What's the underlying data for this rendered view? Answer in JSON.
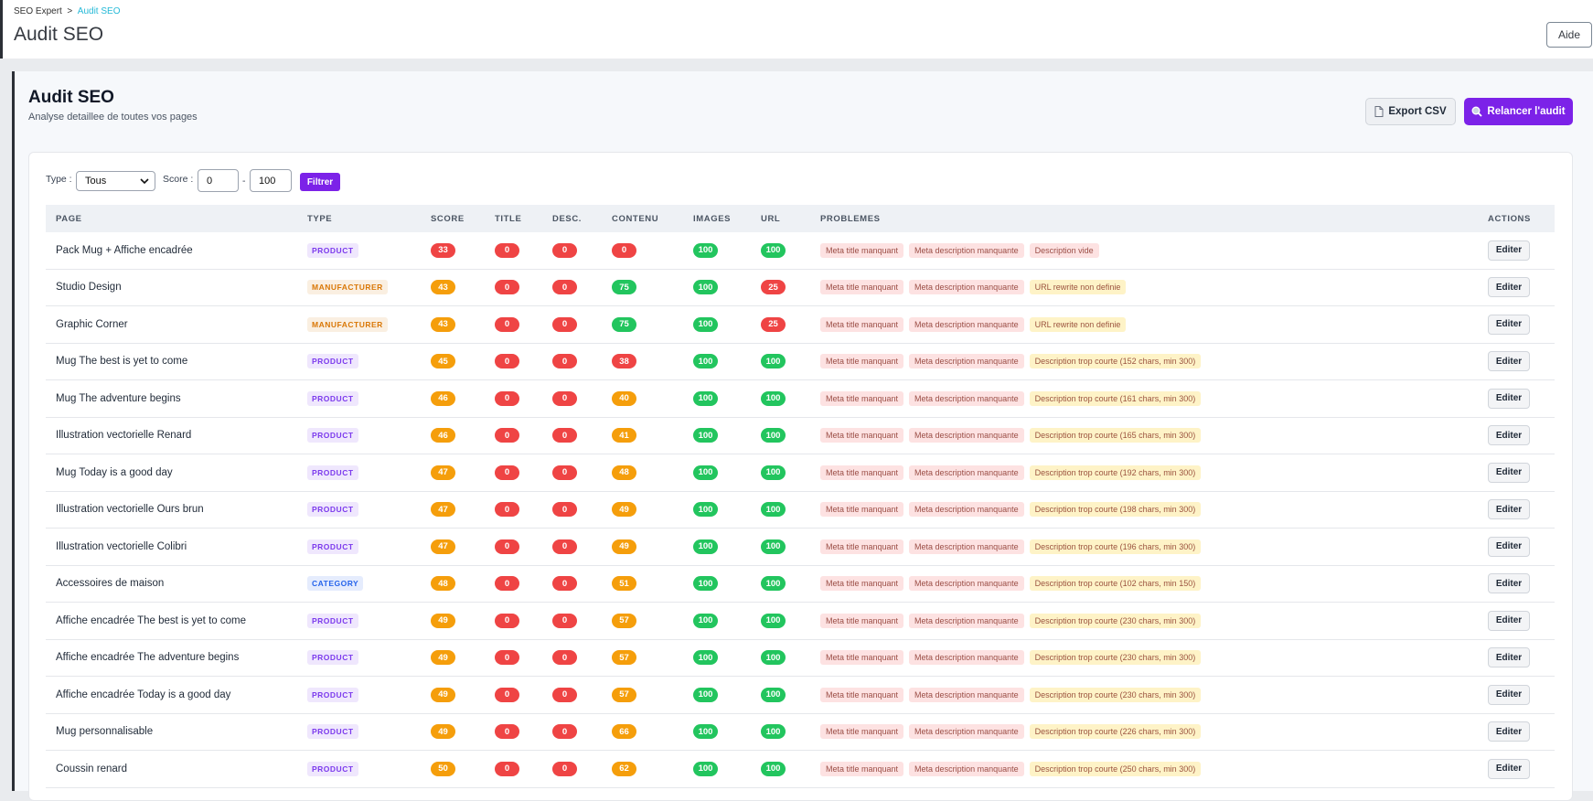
{
  "breadcrumb": {
    "root": "SEO Expert",
    "separator": ">",
    "current": "Audit SEO"
  },
  "header": {
    "title": "Audit SEO",
    "help_button": "Aide"
  },
  "panel": {
    "title": "Audit SEO",
    "subtitle": "Analyse detaillee de toutes vos pages",
    "export_button": "Export CSV",
    "rerun_button": "Relancer l'audit"
  },
  "filters": {
    "type_label": "Type :",
    "type_value": "Tous",
    "score_label": "Score :",
    "score_min": "0",
    "score_separator": "-",
    "score_max": "100",
    "button": "Filtrer"
  },
  "table": {
    "columns": [
      "PAGE",
      "TYPE",
      "SCORE",
      "TITLE",
      "DESC.",
      "CONTENU",
      "IMAGES",
      "URL",
      "PROBLEMES",
      "ACTIONS"
    ],
    "type_colors": {
      "PRODUCT": "#7c3aed",
      "MANUFACTURER": "#d97706",
      "CATEGORY": "#2563eb"
    },
    "rows": [
      {
        "page": "Pack Mug + Affiche encadrée",
        "type": "PRODUCT",
        "score": 33,
        "title": 0,
        "description": 0,
        "content": 0,
        "images": 100,
        "url": 100,
        "problems": [
          {
            "text": "Meta title manquant",
            "color": "#fde2e2"
          },
          {
            "text": "Meta description manquante",
            "color": "#fde2e2"
          },
          {
            "text": "Description vide",
            "color": "#fde2e2"
          }
        ],
        "action": "Editer"
      },
      {
        "page": "Studio Design",
        "type": "MANUFACTURER",
        "score": 43,
        "title": 0,
        "description": 0,
        "content": 75,
        "images": 100,
        "url": 25,
        "problems": [
          {
            "text": "Meta title manquant",
            "color": "#fde2e2"
          },
          {
            "text": "Meta description manquante",
            "color": "#fde2e2"
          },
          {
            "text": "URL rewrite non definie",
            "color": "#fef3c7"
          }
        ],
        "action": "Editer"
      },
      {
        "page": "Graphic Corner",
        "type": "MANUFACTURER",
        "score": 43,
        "title": 0,
        "description": 0,
        "content": 75,
        "images": 100,
        "url": 25,
        "problems": [
          {
            "text": "Meta title manquant",
            "color": "#fde2e2"
          },
          {
            "text": "Meta description manquante",
            "color": "#fde2e2"
          },
          {
            "text": "URL rewrite non definie",
            "color": "#fef3c7"
          }
        ],
        "action": "Editer"
      },
      {
        "page": "Mug The best is yet to come",
        "type": "PRODUCT",
        "score": 45,
        "title": 0,
        "description": 0,
        "content": 38,
        "images": 100,
        "url": 100,
        "problems": [
          {
            "text": "Meta title manquant",
            "color": "#fde2e2"
          },
          {
            "text": "Meta description manquante",
            "color": "#fde2e2"
          },
          {
            "text": "Description trop courte (152 chars, min 300)",
            "color": "#fef3c7"
          }
        ],
        "action": "Editer"
      },
      {
        "page": "Mug The adventure begins",
        "type": "PRODUCT",
        "score": 46,
        "title": 0,
        "description": 0,
        "content": 40,
        "images": 100,
        "url": 100,
        "problems": [
          {
            "text": "Meta title manquant",
            "color": "#fde2e2"
          },
          {
            "text": "Meta description manquante",
            "color": "#fde2e2"
          },
          {
            "text": "Description trop courte (161 chars, min 300)",
            "color": "#fef3c7"
          }
        ],
        "action": "Editer"
      },
      {
        "page": "Illustration vectorielle Renard",
        "type": "PRODUCT",
        "score": 46,
        "title": 0,
        "description": 0,
        "content": 41,
        "images": 100,
        "url": 100,
        "problems": [
          {
            "text": "Meta title manquant",
            "color": "#fde2e2"
          },
          {
            "text": "Meta description manquante",
            "color": "#fde2e2"
          },
          {
            "text": "Description trop courte (165 chars, min 300)",
            "color": "#fef3c7"
          }
        ],
        "action": "Editer"
      },
      {
        "page": "Mug Today is a good day",
        "type": "PRODUCT",
        "score": 47,
        "title": 0,
        "description": 0,
        "content": 48,
        "images": 100,
        "url": 100,
        "problems": [
          {
            "text": "Meta title manquant",
            "color": "#fde2e2"
          },
          {
            "text": "Meta description manquante",
            "color": "#fde2e2"
          },
          {
            "text": "Description trop courte (192 chars, min 300)",
            "color": "#fef3c7"
          }
        ],
        "action": "Editer"
      },
      {
        "page": "Illustration vectorielle Ours brun",
        "type": "PRODUCT",
        "score": 47,
        "title": 0,
        "description": 0,
        "content": 49,
        "images": 100,
        "url": 100,
        "problems": [
          {
            "text": "Meta title manquant",
            "color": "#fde2e2"
          },
          {
            "text": "Meta description manquante",
            "color": "#fde2e2"
          },
          {
            "text": "Description trop courte (198 chars, min 300)",
            "color": "#fef3c7"
          }
        ],
        "action": "Editer"
      },
      {
        "page": "Illustration vectorielle Colibri",
        "type": "PRODUCT",
        "score": 47,
        "title": 0,
        "description": 0,
        "content": 49,
        "images": 100,
        "url": 100,
        "problems": [
          {
            "text": "Meta title manquant",
            "color": "#fde2e2"
          },
          {
            "text": "Meta description manquante",
            "color": "#fde2e2"
          },
          {
            "text": "Description trop courte (196 chars, min 300)",
            "color": "#fef3c7"
          }
        ],
        "action": "Editer"
      },
      {
        "page": "Accessoires de maison",
        "type": "CATEGORY",
        "score": 48,
        "title": 0,
        "description": 0,
        "content": 51,
        "images": 100,
        "url": 100,
        "problems": [
          {
            "text": "Meta title manquant",
            "color": "#fde2e2"
          },
          {
            "text": "Meta description manquante",
            "color": "#fde2e2"
          },
          {
            "text": "Description trop courte (102 chars, min 150)",
            "color": "#fef3c7"
          }
        ],
        "action": "Editer"
      },
      {
        "page": "Affiche encadrée The best is yet to come",
        "type": "PRODUCT",
        "score": 49,
        "title": 0,
        "description": 0,
        "content": 57,
        "images": 100,
        "url": 100,
        "problems": [
          {
            "text": "Meta title manquant",
            "color": "#fde2e2"
          },
          {
            "text": "Meta description manquante",
            "color": "#fde2e2"
          },
          {
            "text": "Description trop courte (230 chars, min 300)",
            "color": "#fef3c7"
          }
        ],
        "action": "Editer"
      },
      {
        "page": "Affiche encadrée The adventure begins",
        "type": "PRODUCT",
        "score": 49,
        "title": 0,
        "description": 0,
        "content": 57,
        "images": 100,
        "url": 100,
        "problems": [
          {
            "text": "Meta title manquant",
            "color": "#fde2e2"
          },
          {
            "text": "Meta description manquante",
            "color": "#fde2e2"
          },
          {
            "text": "Description trop courte (230 chars, min 300)",
            "color": "#fef3c7"
          }
        ],
        "action": "Editer"
      },
      {
        "page": "Affiche encadrée Today is a good day",
        "type": "PRODUCT",
        "score": 49,
        "title": 0,
        "description": 0,
        "content": 57,
        "images": 100,
        "url": 100,
        "problems": [
          {
            "text": "Meta title manquant",
            "color": "#fde2e2"
          },
          {
            "text": "Meta description manquante",
            "color": "#fde2e2"
          },
          {
            "text": "Description trop courte (230 chars, min 300)",
            "color": "#fef3c7"
          }
        ],
        "action": "Editer"
      },
      {
        "page": "Mug personnalisable",
        "type": "PRODUCT",
        "score": 49,
        "title": 0,
        "description": 0,
        "content": 66,
        "images": 100,
        "url": 100,
        "problems": [
          {
            "text": "Meta title manquant",
            "color": "#fde2e2"
          },
          {
            "text": "Meta description manquante",
            "color": "#fde2e2"
          },
          {
            "text": "Description trop courte (226 chars, min 300)",
            "color": "#fef3c7"
          }
        ],
        "action": "Editer"
      },
      {
        "page": "Coussin renard",
        "type": "PRODUCT",
        "score": 50,
        "title": 0,
        "description": 0,
        "content": 62,
        "images": 100,
        "url": 100,
        "problems": [
          {
            "text": "Meta title manquant",
            "color": "#fde2e2"
          },
          {
            "text": "Meta description manquante",
            "color": "#fde2e2"
          },
          {
            "text": "Description trop courte (250 chars, min 300)",
            "color": "#fef3c7"
          }
        ],
        "action": "Editer"
      }
    ]
  }
}
